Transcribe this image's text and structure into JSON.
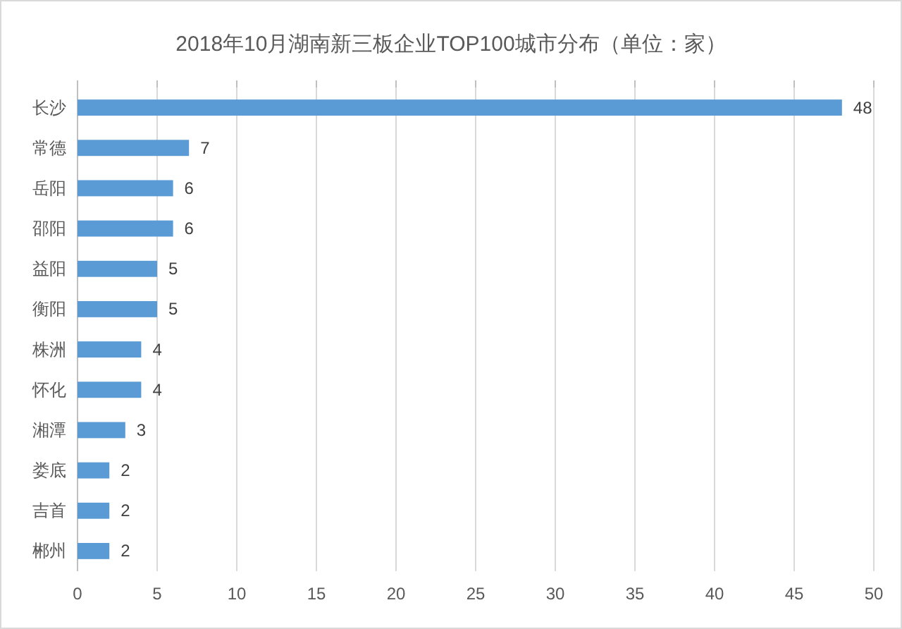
{
  "chart_data": {
    "type": "bar",
    "orientation": "horizontal",
    "title": "2018年10月湖南新三板企业TOP100城市分布（单位：家）",
    "categories": [
      "长沙",
      "常德",
      "岳阳",
      "邵阳",
      "益阳",
      "衡阳",
      "株洲",
      "怀化",
      "湘潭",
      "娄底",
      "吉首",
      "郴州"
    ],
    "values": [
      48,
      7,
      6,
      6,
      5,
      5,
      4,
      4,
      3,
      2,
      2,
      2
    ],
    "color": "#5b9bd5",
    "xlim": [
      0,
      50
    ],
    "xticks": [
      0,
      5,
      10,
      15,
      20,
      25,
      30,
      35,
      40,
      45,
      50
    ],
    "grid": "x",
    "data_labels": true
  }
}
